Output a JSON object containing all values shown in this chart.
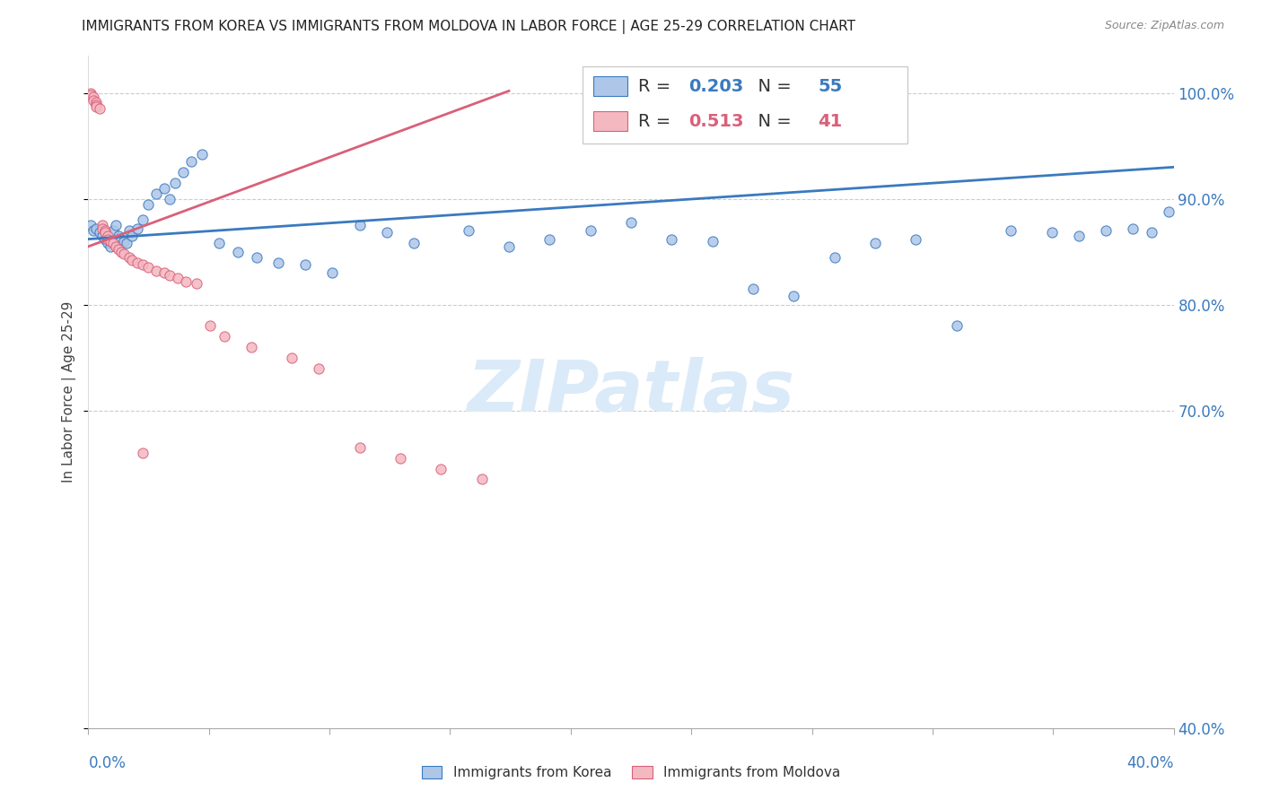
{
  "title": "IMMIGRANTS FROM KOREA VS IMMIGRANTS FROM MOLDOVA IN LABOR FORCE | AGE 25-29 CORRELATION CHART",
  "source": "Source: ZipAtlas.com",
  "ylabel": "In Labor Force | Age 25-29",
  "ylabel_ticks": [
    "40.0%",
    "70.0%",
    "80.0%",
    "90.0%",
    "100.0%"
  ],
  "ylabel_tick_values": [
    0.4,
    0.7,
    0.8,
    0.9,
    1.0
  ],
  "xlim": [
    0.0,
    0.4
  ],
  "ylim": [
    0.4,
    1.035
  ],
  "korea_R": 0.203,
  "korea_N": 55,
  "moldova_R": 0.513,
  "moldova_N": 41,
  "korea_color": "#aec6e8",
  "moldova_color": "#f4b8c1",
  "korea_line_color": "#3a7abf",
  "moldova_line_color": "#d9607a",
  "watermark": "ZIPatlas",
  "watermark_color": "#daeaf8",
  "korea_x": [
    0.001,
    0.002,
    0.003,
    0.004,
    0.005,
    0.006,
    0.007,
    0.008,
    0.009,
    0.01,
    0.011,
    0.012,
    0.013,
    0.014,
    0.015,
    0.016,
    0.018,
    0.02,
    0.022,
    0.025,
    0.028,
    0.03,
    0.032,
    0.035,
    0.038,
    0.042,
    0.048,
    0.055,
    0.062,
    0.07,
    0.08,
    0.09,
    0.1,
    0.11,
    0.12,
    0.14,
    0.155,
    0.17,
    0.185,
    0.2,
    0.215,
    0.23,
    0.245,
    0.26,
    0.275,
    0.29,
    0.305,
    0.32,
    0.34,
    0.355,
    0.365,
    0.375,
    0.385,
    0.392,
    0.398
  ],
  "korea_y": [
    0.875,
    0.87,
    0.872,
    0.868,
    0.865,
    0.862,
    0.858,
    0.855,
    0.87,
    0.875,
    0.865,
    0.862,
    0.86,
    0.858,
    0.87,
    0.865,
    0.872,
    0.88,
    0.895,
    0.905,
    0.91,
    0.9,
    0.915,
    0.925,
    0.935,
    0.942,
    0.858,
    0.85,
    0.845,
    0.84,
    0.838,
    0.83,
    0.875,
    0.868,
    0.858,
    0.87,
    0.855,
    0.862,
    0.87,
    0.878,
    0.862,
    0.86,
    0.815,
    0.808,
    0.845,
    0.858,
    0.862,
    0.78,
    0.87,
    0.868,
    0.865,
    0.87,
    0.872,
    0.868,
    0.888
  ],
  "moldova_x": [
    0.001,
    0.001,
    0.002,
    0.002,
    0.003,
    0.003,
    0.003,
    0.004,
    0.005,
    0.005,
    0.006,
    0.006,
    0.007,
    0.007,
    0.008,
    0.009,
    0.01,
    0.011,
    0.012,
    0.013,
    0.015,
    0.016,
    0.018,
    0.02,
    0.022,
    0.025,
    0.028,
    0.03,
    0.033,
    0.036,
    0.04,
    0.045,
    0.05,
    0.06,
    0.075,
    0.085,
    0.1,
    0.115,
    0.13,
    0.145,
    0.02
  ],
  "moldova_y": [
    1.0,
    0.998,
    0.996,
    0.993,
    0.991,
    0.989,
    0.987,
    0.985,
    0.875,
    0.872,
    0.87,
    0.868,
    0.865,
    0.862,
    0.86,
    0.858,
    0.855,
    0.852,
    0.85,
    0.848,
    0.845,
    0.842,
    0.84,
    0.838,
    0.835,
    0.832,
    0.83,
    0.828,
    0.825,
    0.822,
    0.82,
    0.78,
    0.77,
    0.76,
    0.75,
    0.74,
    0.665,
    0.655,
    0.645,
    0.635,
    0.66
  ],
  "korea_trend_x": [
    0.0,
    0.4
  ],
  "korea_trend_y": [
    0.862,
    0.93
  ],
  "moldova_trend_x": [
    0.0,
    0.155
  ],
  "moldova_trend_y": [
    0.855,
    1.002
  ]
}
